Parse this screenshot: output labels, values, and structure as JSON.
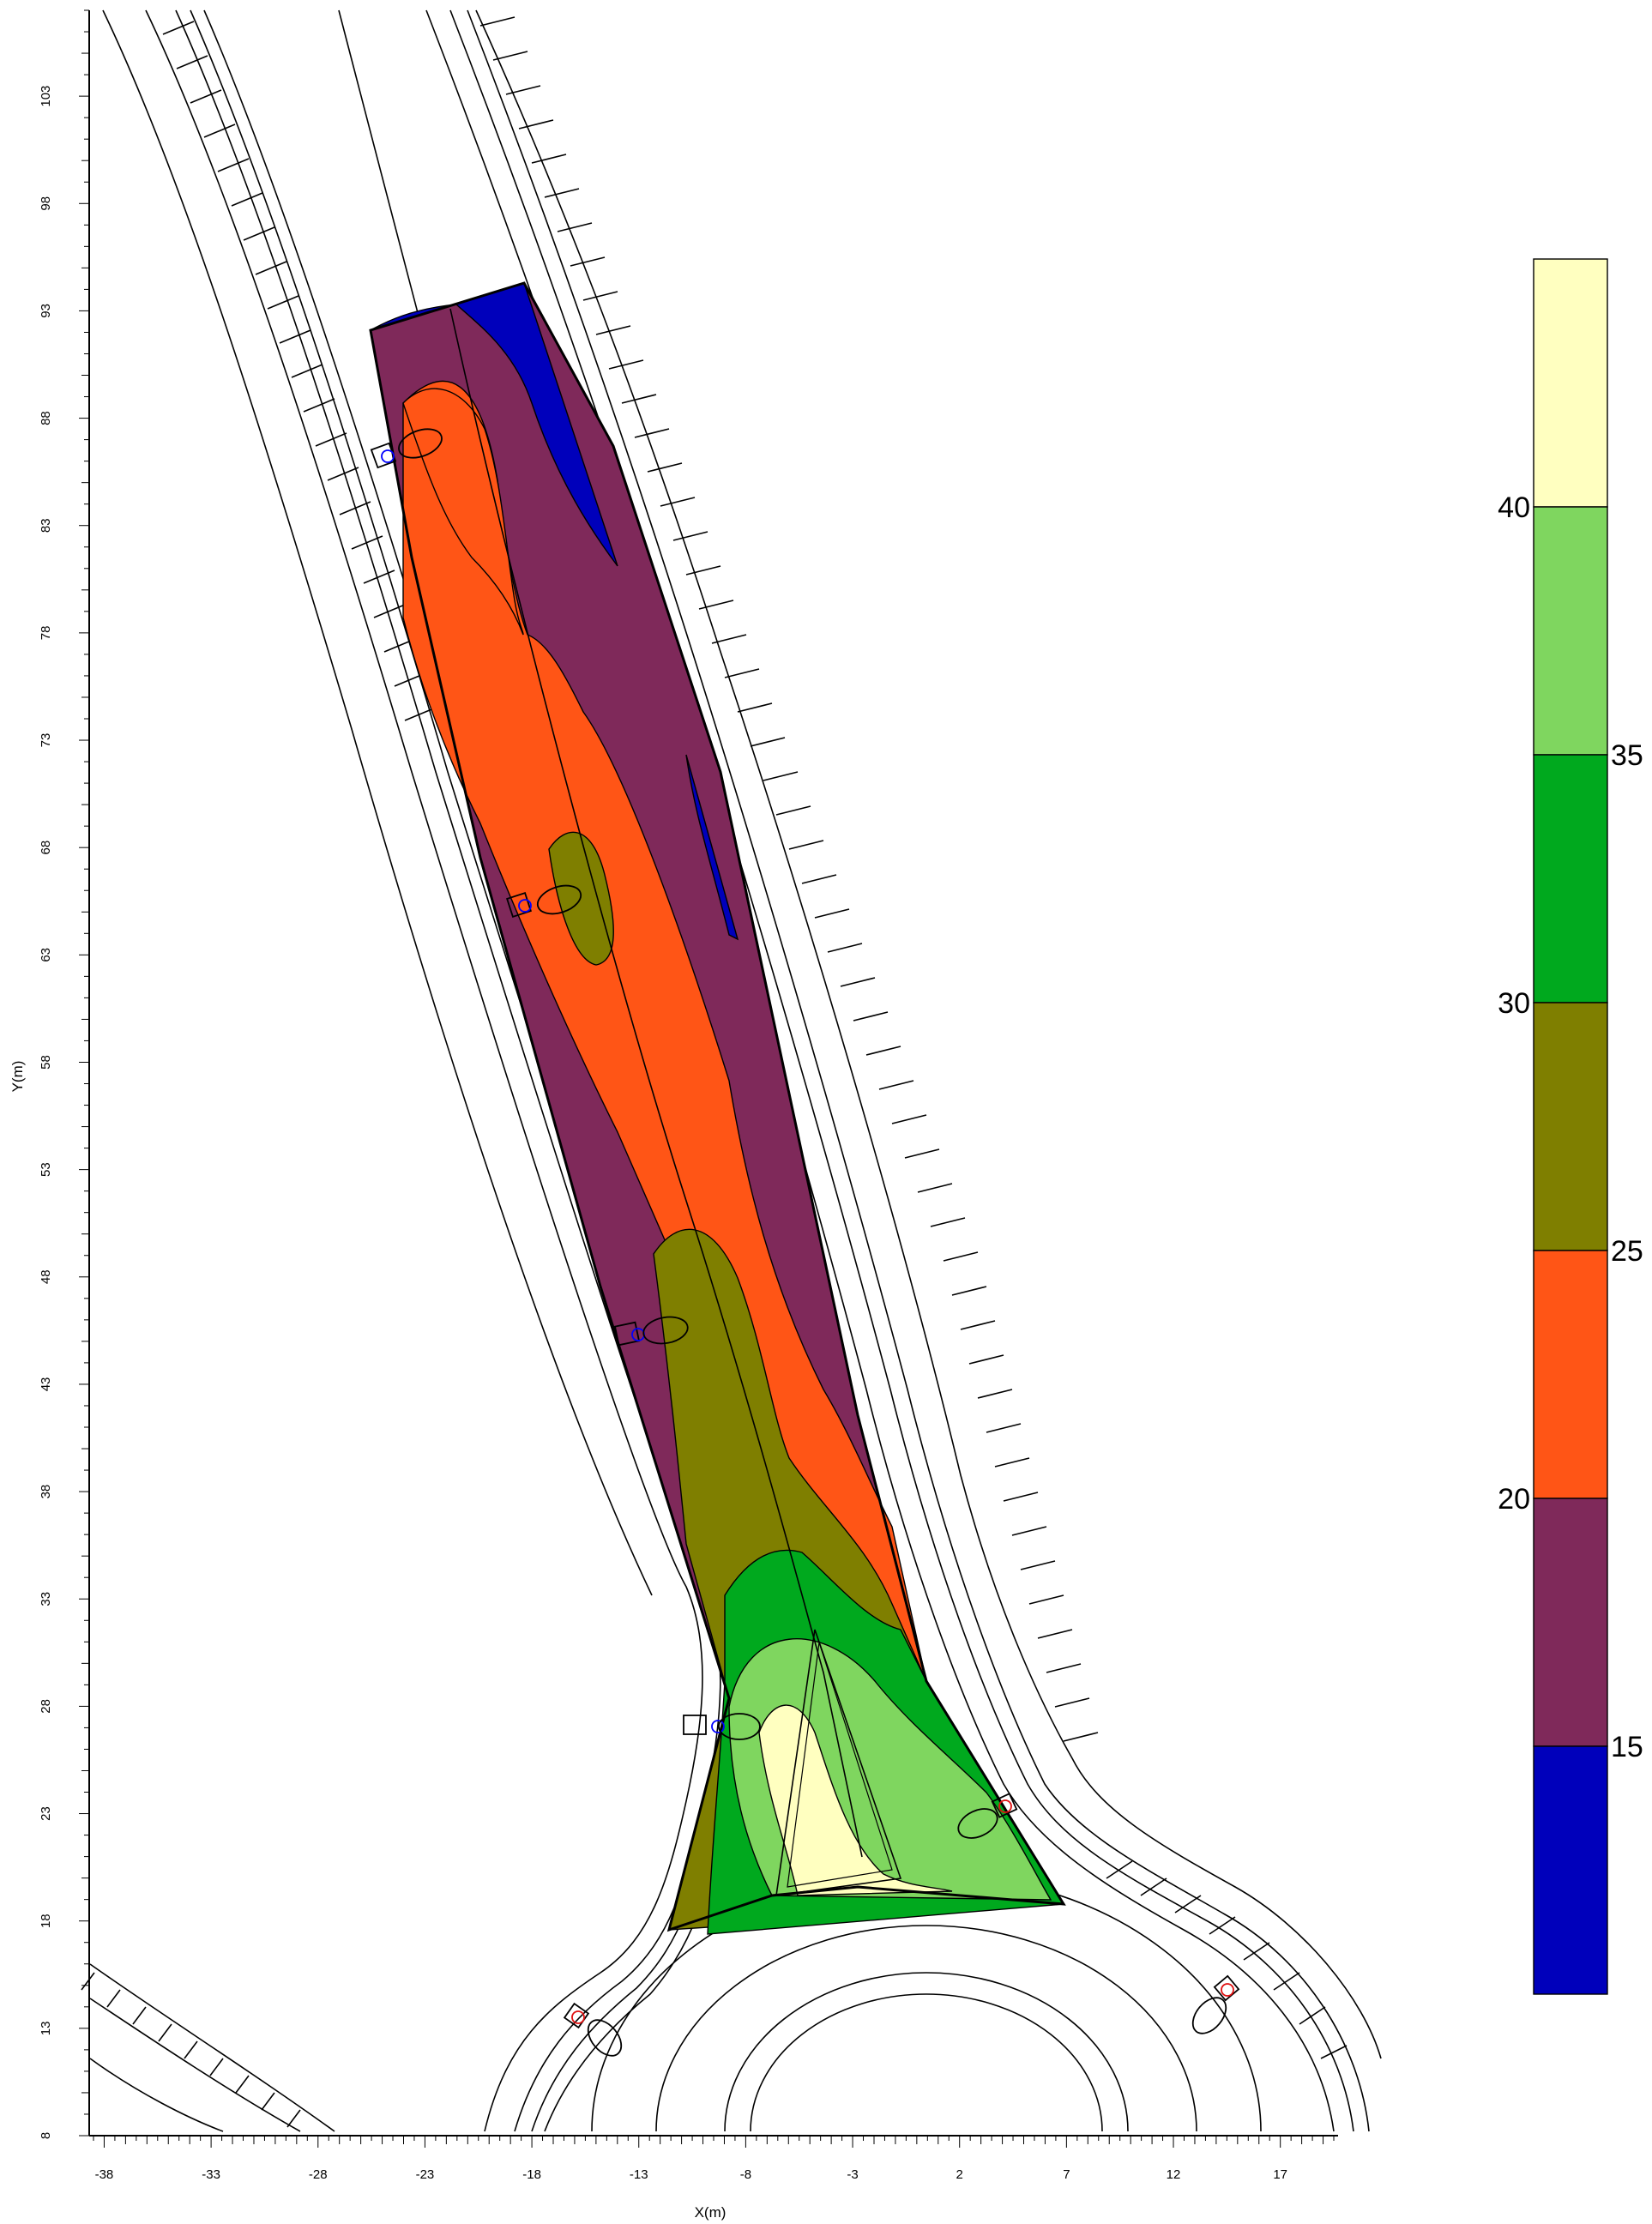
{
  "chart_data": {
    "type": "heatmap",
    "title": "",
    "xlabel": "X(m)",
    "ylabel": "Y(m)",
    "x_ticks": [
      -38,
      -33,
      -28,
      -23,
      -18,
      -13,
      -8,
      -3,
      2,
      7,
      12,
      17
    ],
    "y_ticks": [
      8,
      13,
      18,
      23,
      28,
      33,
      38,
      43,
      48,
      53,
      58,
      63,
      68,
      73,
      78,
      83,
      88,
      93,
      98,
      103
    ],
    "xlim": [
      -38.7,
      19.7
    ],
    "ylim": [
      8,
      107
    ],
    "legend": {
      "placement": "right",
      "levels": [
        {
          "from": 10,
          "to": 15,
          "color": "#0000bb"
        },
        {
          "from": 15,
          "to": 20,
          "color": "#7f295a"
        },
        {
          "from": 20,
          "to": 25,
          "color": "#ff5516"
        },
        {
          "from": 25,
          "to": 30,
          "color": "#7f7f00"
        },
        {
          "from": 30,
          "to": 35,
          "color": "#00a91e"
        },
        {
          "from": 35,
          "to": 40,
          "color": "#7fd65f"
        },
        {
          "from": 40,
          "to": 45,
          "color": "#ffffc0"
        }
      ],
      "labels": [
        "15",
        "20",
        "25",
        "30",
        "35",
        "40"
      ]
    },
    "luminaires": [
      {
        "x": -25.0,
        "y": 85.0,
        "color": "blue"
      },
      {
        "x": -18.6,
        "y": 64.1,
        "color": "blue"
      },
      {
        "x": -13.3,
        "y": 44.9,
        "color": "blue"
      },
      {
        "x": -9.7,
        "y": 26.1,
        "color": "blue"
      },
      {
        "x": 4.5,
        "y": 22.4,
        "color": "red"
      },
      {
        "x": -16.4,
        "y": 12.9,
        "color": "red"
      },
      {
        "x": 14.9,
        "y": 14.2,
        "color": "red"
      }
    ]
  }
}
